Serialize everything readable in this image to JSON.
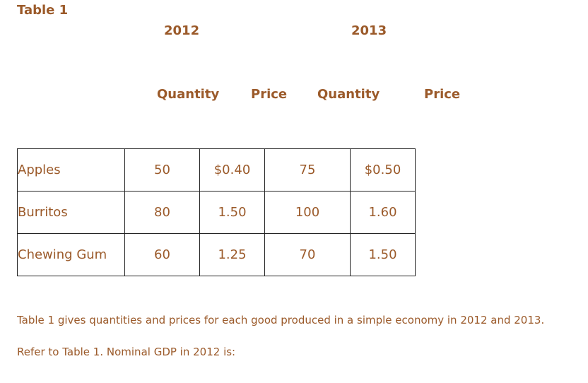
{
  "title": "Table 1",
  "years": [
    "2012",
    "2013"
  ],
  "subheaders": [
    "Quantity",
    "Price",
    "Quantity",
    "Price"
  ],
  "rows": [
    {
      "name": "Apples",
      "q2012": "50",
      "p2012": "$0.40",
      "q2013": "75",
      "p2013": "$0.50"
    },
    {
      "name": "Burritos",
      "q2012": "80",
      "p2012": "1.50",
      "q2013": "100",
      "p2013": "1.60"
    },
    {
      "name": "Chewing Gum",
      "q2012": "60",
      "p2012": "1.25",
      "q2013": "70",
      "p2013": "1.50"
    }
  ],
  "description": "Table 1 gives quantities and prices for each good produced in a simple economy in 2012 and 2013.",
  "question": "Refer to Table 1. Nominal GDP in 2012 is:",
  "colors": {
    "text": "#9b5a2a",
    "border": "#222222"
  }
}
